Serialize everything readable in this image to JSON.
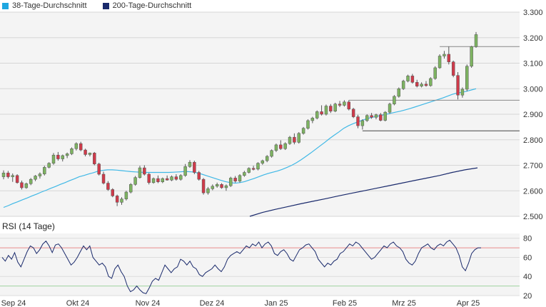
{
  "legend": [
    {
      "label": "38-Tage-Durchschnitt",
      "color": "#1ea7e1"
    },
    {
      "label": "200-Tage-Durchschnitt",
      "color": "#1a2a6c"
    }
  ],
  "rsi_title": "RSI (14 Tage)",
  "colors": {
    "up": "#7db361",
    "down": "#d03a4a",
    "ma38": "#3fb8e6",
    "ma200": "#1a2a6c",
    "rsi": "#1a2a6c",
    "rsi_upper": "#e88c8c",
    "rsi_lower": "#9fd39f"
  },
  "chart_data": [
    {
      "type": "candlestick",
      "title": "",
      "ylim": [
        2500,
        3300
      ],
      "yticks": [
        "2.500",
        "2.600",
        "2.700",
        "2.800",
        "2.900",
        "3.000",
        "3.100",
        "3.200",
        "3.300"
      ],
      "x_labels": [
        "Sep 24",
        "Okt 24",
        "Nov 24",
        "Dez 24",
        "Jan 25",
        "Feb 25",
        "Mrz 25",
        "Apr 25"
      ],
      "grid": true,
      "candles": [
        {
          "o": 2655,
          "h": 2680,
          "l": 2645,
          "c": 2670
        },
        {
          "o": 2670,
          "h": 2678,
          "l": 2648,
          "c": 2655
        },
        {
          "o": 2655,
          "h": 2668,
          "l": 2635,
          "c": 2660
        },
        {
          "o": 2660,
          "h": 2665,
          "l": 2628,
          "c": 2632
        },
        {
          "o": 2632,
          "h": 2640,
          "l": 2605,
          "c": 2612
        },
        {
          "o": 2612,
          "h": 2632,
          "l": 2608,
          "c": 2628
        },
        {
          "o": 2628,
          "h": 2650,
          "l": 2622,
          "c": 2645
        },
        {
          "o": 2645,
          "h": 2662,
          "l": 2638,
          "c": 2658
        },
        {
          "o": 2658,
          "h": 2672,
          "l": 2648,
          "c": 2666
        },
        {
          "o": 2666,
          "h": 2698,
          "l": 2660,
          "c": 2692
        },
        {
          "o": 2692,
          "h": 2712,
          "l": 2688,
          "c": 2708
        },
        {
          "o": 2708,
          "h": 2748,
          "l": 2702,
          "c": 2740
        },
        {
          "o": 2740,
          "h": 2752,
          "l": 2718,
          "c": 2725
        },
        {
          "o": 2725,
          "h": 2742,
          "l": 2715,
          "c": 2738
        },
        {
          "o": 2738,
          "h": 2750,
          "l": 2728,
          "c": 2745
        },
        {
          "o": 2745,
          "h": 2770,
          "l": 2740,
          "c": 2765
        },
        {
          "o": 2765,
          "h": 2790,
          "l": 2758,
          "c": 2785
        },
        {
          "o": 2785,
          "h": 2792,
          "l": 2755,
          "c": 2760
        },
        {
          "o": 2760,
          "h": 2765,
          "l": 2735,
          "c": 2742
        },
        {
          "o": 2742,
          "h": 2750,
          "l": 2735,
          "c": 2748
        },
        {
          "o": 2748,
          "h": 2752,
          "l": 2700,
          "c": 2705
        },
        {
          "o": 2705,
          "h": 2710,
          "l": 2660,
          "c": 2665
        },
        {
          "o": 2665,
          "h": 2675,
          "l": 2625,
          "c": 2630
        },
        {
          "o": 2630,
          "h": 2638,
          "l": 2600,
          "c": 2605
        },
        {
          "o": 2605,
          "h": 2610,
          "l": 2575,
          "c": 2580
        },
        {
          "o": 2580,
          "h": 2585,
          "l": 2540,
          "c": 2555
        },
        {
          "o": 2555,
          "h": 2575,
          "l": 2545,
          "c": 2568
        },
        {
          "o": 2568,
          "h": 2600,
          "l": 2562,
          "c": 2595
        },
        {
          "o": 2595,
          "h": 2630,
          "l": 2590,
          "c": 2625
        },
        {
          "o": 2625,
          "h": 2658,
          "l": 2620,
          "c": 2652
        },
        {
          "o": 2652,
          "h": 2698,
          "l": 2648,
          "c": 2690
        },
        {
          "o": 2690,
          "h": 2700,
          "l": 2660,
          "c": 2665
        },
        {
          "o": 2665,
          "h": 2670,
          "l": 2625,
          "c": 2632
        },
        {
          "o": 2632,
          "h": 2652,
          "l": 2628,
          "c": 2648
        },
        {
          "o": 2648,
          "h": 2660,
          "l": 2630,
          "c": 2635
        },
        {
          "o": 2635,
          "h": 2652,
          "l": 2630,
          "c": 2648
        },
        {
          "o": 2648,
          "h": 2660,
          "l": 2640,
          "c": 2642
        },
        {
          "o": 2642,
          "h": 2660,
          "l": 2638,
          "c": 2655
        },
        {
          "o": 2655,
          "h": 2665,
          "l": 2640,
          "c": 2645
        },
        {
          "o": 2645,
          "h": 2665,
          "l": 2640,
          "c": 2660
        },
        {
          "o": 2660,
          "h": 2705,
          "l": 2655,
          "c": 2695
        },
        {
          "o": 2695,
          "h": 2720,
          "l": 2690,
          "c": 2712
        },
        {
          "o": 2712,
          "h": 2718,
          "l": 2665,
          "c": 2672
        },
        {
          "o": 2672,
          "h": 2678,
          "l": 2640,
          "c": 2645
        },
        {
          "o": 2645,
          "h": 2650,
          "l": 2585,
          "c": 2592
        },
        {
          "o": 2592,
          "h": 2615,
          "l": 2585,
          "c": 2608
        },
        {
          "o": 2608,
          "h": 2625,
          "l": 2602,
          "c": 2618
        },
        {
          "o": 2618,
          "h": 2632,
          "l": 2612,
          "c": 2625
        },
        {
          "o": 2625,
          "h": 2630,
          "l": 2608,
          "c": 2612
        },
        {
          "o": 2612,
          "h": 2625,
          "l": 2600,
          "c": 2620
        },
        {
          "o": 2620,
          "h": 2655,
          "l": 2615,
          "c": 2650
        },
        {
          "o": 2650,
          "h": 2658,
          "l": 2632,
          "c": 2638
        },
        {
          "o": 2638,
          "h": 2665,
          "l": 2632,
          "c": 2660
        },
        {
          "o": 2660,
          "h": 2678,
          "l": 2655,
          "c": 2672
        },
        {
          "o": 2672,
          "h": 2692,
          "l": 2668,
          "c": 2688
        },
        {
          "o": 2688,
          "h": 2698,
          "l": 2680,
          "c": 2685
        },
        {
          "o": 2685,
          "h": 2712,
          "l": 2680,
          "c": 2708
        },
        {
          "o": 2708,
          "h": 2722,
          "l": 2702,
          "c": 2718
        },
        {
          "o": 2718,
          "h": 2740,
          "l": 2712,
          "c": 2735
        },
        {
          "o": 2735,
          "h": 2762,
          "l": 2730,
          "c": 2758
        },
        {
          "o": 2758,
          "h": 2785,
          "l": 2752,
          "c": 2780
        },
        {
          "o": 2780,
          "h": 2798,
          "l": 2760,
          "c": 2765
        },
        {
          "o": 2765,
          "h": 2790,
          "l": 2760,
          "c": 2785
        },
        {
          "o": 2785,
          "h": 2815,
          "l": 2780,
          "c": 2810
        },
        {
          "o": 2810,
          "h": 2825,
          "l": 2782,
          "c": 2790
        },
        {
          "o": 2790,
          "h": 2830,
          "l": 2785,
          "c": 2825
        },
        {
          "o": 2825,
          "h": 2850,
          "l": 2820,
          "c": 2845
        },
        {
          "o": 2845,
          "h": 2880,
          "l": 2840,
          "c": 2875
        },
        {
          "o": 2875,
          "h": 2890,
          "l": 2865,
          "c": 2885
        },
        {
          "o": 2885,
          "h": 2915,
          "l": 2880,
          "c": 2910
        },
        {
          "o": 2910,
          "h": 2935,
          "l": 2895,
          "c": 2900
        },
        {
          "o": 2900,
          "h": 2938,
          "l": 2895,
          "c": 2932
        },
        {
          "o": 2932,
          "h": 2940,
          "l": 2905,
          "c": 2912
        },
        {
          "o": 2912,
          "h": 2945,
          "l": 2908,
          "c": 2940
        },
        {
          "o": 2940,
          "h": 2952,
          "l": 2928,
          "c": 2935
        },
        {
          "o": 2935,
          "h": 2955,
          "l": 2930,
          "c": 2948
        },
        {
          "o": 2948,
          "h": 2955,
          "l": 2915,
          "c": 2920
        },
        {
          "o": 2920,
          "h": 2925,
          "l": 2885,
          "c": 2890
        },
        {
          "o": 2890,
          "h": 2898,
          "l": 2845,
          "c": 2855
        },
        {
          "o": 2855,
          "h": 2880,
          "l": 2840,
          "c": 2875
        },
        {
          "o": 2875,
          "h": 2900,
          "l": 2870,
          "c": 2895
        },
        {
          "o": 2895,
          "h": 2905,
          "l": 2882,
          "c": 2888
        },
        {
          "o": 2888,
          "h": 2902,
          "l": 2880,
          "c": 2898
        },
        {
          "o": 2898,
          "h": 2905,
          "l": 2872,
          "c": 2876
        },
        {
          "o": 2876,
          "h": 2912,
          "l": 2872,
          "c": 2908
        },
        {
          "o": 2908,
          "h": 2945,
          "l": 2902,
          "c": 2940
        },
        {
          "o": 2940,
          "h": 2975,
          "l": 2935,
          "c": 2970
        },
        {
          "o": 2970,
          "h": 3005,
          "l": 2965,
          "c": 3000
        },
        {
          "o": 3000,
          "h": 3035,
          "l": 2995,
          "c": 3030
        },
        {
          "o": 3030,
          "h": 3055,
          "l": 3025,
          "c": 3050
        },
        {
          "o": 3050,
          "h": 3058,
          "l": 3020,
          "c": 3025
        },
        {
          "o": 3025,
          "h": 3035,
          "l": 3005,
          "c": 3010
        },
        {
          "o": 3010,
          "h": 3025,
          "l": 3005,
          "c": 3018
        },
        {
          "o": 3018,
          "h": 3030,
          "l": 3008,
          "c": 3012
        },
        {
          "o": 3012,
          "h": 3045,
          "l": 3008,
          "c": 3040
        },
        {
          "o": 3040,
          "h": 3088,
          "l": 3035,
          "c": 3082
        },
        {
          "o": 3082,
          "h": 3135,
          "l": 3078,
          "c": 3128
        },
        {
          "o": 3128,
          "h": 3148,
          "l": 3118,
          "c": 3135
        },
        {
          "o": 3135,
          "h": 3165,
          "l": 3095,
          "c": 3105
        },
        {
          "o": 3105,
          "h": 3110,
          "l": 3045,
          "c": 3052
        },
        {
          "o": 3052,
          "h": 3065,
          "l": 2958,
          "c": 2975
        },
        {
          "o": 2975,
          "h": 3005,
          "l": 2965,
          "c": 2998
        },
        {
          "o": 2998,
          "h": 3095,
          "l": 2990,
          "c": 3088
        },
        {
          "o": 3088,
          "h": 3168,
          "l": 3082,
          "c": 3165
        },
        {
          "o": 3165,
          "h": 3222,
          "l": 3160,
          "c": 3212
        }
      ],
      "ma38": [
        2535,
        2542,
        2550,
        2557,
        2565,
        2572,
        2580,
        2587,
        2595,
        2602,
        2610,
        2617,
        2625,
        2632,
        2640,
        2647,
        2655,
        2660,
        2666,
        2671,
        2677,
        2680,
        2682,
        2682,
        2681,
        2679,
        2677,
        2675,
        2674,
        2673,
        2672,
        2672,
        2672,
        2672,
        2672,
        2672,
        2673,
        2674,
        2675,
        2675,
        2674,
        2670,
        2665,
        2659,
        2653,
        2647,
        2641,
        2636,
        2632,
        2630,
        2632,
        2636,
        2642,
        2648,
        2655,
        2662,
        2668,
        2673,
        2678,
        2684,
        2692,
        2700,
        2710,
        2722,
        2735,
        2748,
        2762,
        2776,
        2790,
        2805,
        2818,
        2831,
        2845,
        2855,
        2863,
        2870,
        2877,
        2883,
        2888,
        2892,
        2896,
        2900,
        2904,
        2908,
        2912,
        2917,
        2922,
        2928,
        2934,
        2940,
        2946,
        2952,
        2958,
        2964,
        2971,
        2978,
        2983,
        2986,
        2990,
        2995,
        3000
      ],
      "ma200": {
        "start_index": 55,
        "values": [
          2500,
          2515,
          2527,
          2538,
          2549,
          2559,
          2569,
          2580,
          2590,
          2600,
          2610,
          2620,
          2630,
          2640,
          2650,
          2660,
          2672,
          2682,
          2690
        ]
      },
      "hlines": [
        {
          "value": 3165,
          "from_index": 96,
          "to_index": 106
        },
        {
          "value": 2955,
          "from_index": 76,
          "to_index": 106
        },
        {
          "value": 2835,
          "from_index": 79,
          "to_index": 106
        }
      ]
    },
    {
      "type": "line",
      "title": "RSI (14 Tage)",
      "ylim": [
        20,
        85
      ],
      "yticks": [
        "20",
        "40",
        "60",
        "80"
      ],
      "bands": [
        70,
        30
      ],
      "values": [
        60,
        56,
        62,
        58,
        65,
        55,
        50,
        58,
        66,
        72,
        70,
        64,
        68,
        74,
        77,
        72,
        65,
        73,
        74,
        70,
        64,
        58,
        52,
        55,
        60,
        66,
        72,
        68,
        72,
        60,
        56,
        52,
        54,
        50,
        40,
        38,
        48,
        52,
        45,
        40,
        30,
        24,
        26,
        30,
        26,
        23,
        22,
        28,
        35,
        38,
        36,
        44,
        52,
        48,
        44,
        48,
        50,
        58,
        56,
        52,
        56,
        50,
        48,
        42,
        40,
        44,
        46,
        48,
        52,
        48,
        45,
        50,
        58,
        62,
        64,
        66,
        64,
        68,
        72,
        70,
        74,
        72,
        76,
        70,
        74,
        76,
        72,
        64,
        62,
        66,
        68,
        64,
        58,
        56,
        62,
        68,
        70,
        73,
        74,
        70,
        66,
        58,
        54,
        50,
        54,
        52,
        56,
        58,
        64,
        66,
        70,
        74,
        72,
        76,
        74,
        70,
        66,
        62,
        58,
        60,
        64,
        68,
        72,
        70,
        74,
        76,
        72,
        70,
        66,
        58,
        54,
        52,
        56,
        64,
        70,
        72,
        74,
        70,
        68,
        72,
        74,
        72,
        76,
        78,
        74,
        70,
        62,
        50,
        46,
        54,
        64,
        68,
        70,
        70
      ]
    }
  ]
}
